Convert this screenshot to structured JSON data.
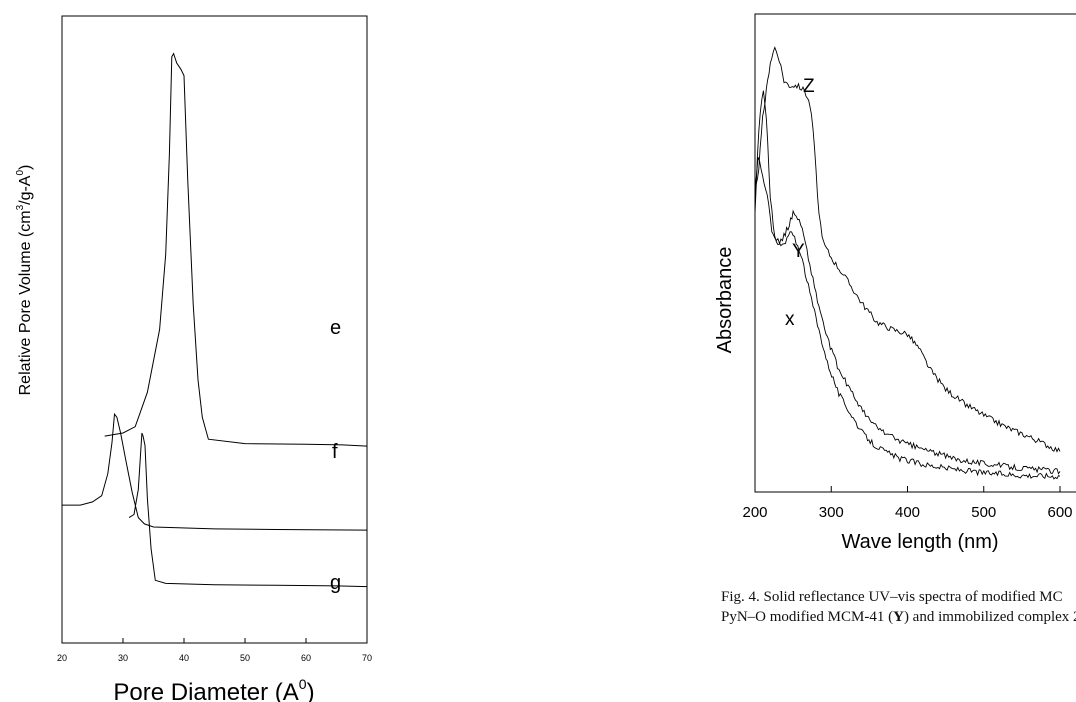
{
  "chart_data": [
    {
      "type": "line",
      "xlabel": "Pore Diameter (A",
      "xlabel_sup": "0",
      "xlabel_end": ")",
      "ylabel": "Relative Pore Volume (cm",
      "ylabel_sup1": "3",
      "ylabel_mid": "/g-A",
      "ylabel_sup2": "0",
      "ylabel_end": ")",
      "xlim": [
        20,
        70
      ],
      "x_ticks": [
        "20",
        "30",
        "40",
        "50",
        "60",
        "70"
      ],
      "y_ticks": "none",
      "grid": false,
      "series": [
        {
          "name": "e",
          "points": [
            [
              27,
              0.33
            ],
            [
              30,
              0.335
            ],
            [
              32,
              0.345
            ],
            [
              34,
              0.4
            ],
            [
              36,
              0.5
            ],
            [
              37,
              0.62
            ],
            [
              37.6,
              0.78
            ],
            [
              38,
              0.935
            ],
            [
              38.3,
              0.94
            ],
            [
              38.8,
              0.925
            ],
            [
              39.5,
              0.915
            ],
            [
              40,
              0.905
            ],
            [
              40.6,
              0.74
            ],
            [
              41.5,
              0.54
            ],
            [
              42.3,
              0.42
            ],
            [
              43,
              0.36
            ],
            [
              44,
              0.325
            ],
            [
              50,
              0.318
            ],
            [
              60,
              0.317
            ],
            [
              66,
              0.316
            ],
            [
              70,
              0.314
            ]
          ]
        },
        {
          "name": "f",
          "points": [
            [
              31,
              0.2
            ],
            [
              31.8,
              0.205
            ],
            [
              32.5,
              0.245
            ],
            [
              32.8,
              0.29
            ],
            [
              33.1,
              0.335
            ],
            [
              33.3,
              0.33
            ],
            [
              33.6,
              0.315
            ],
            [
              34,
              0.23
            ],
            [
              34.6,
              0.15
            ],
            [
              35.3,
              0.1
            ],
            [
              37,
              0.095
            ],
            [
              45,
              0.093
            ],
            [
              55,
              0.092
            ],
            [
              65,
              0.091
            ],
            [
              70,
              0.09
            ]
          ]
        },
        {
          "name": "g",
          "points": [
            [
              20,
              0.22
            ],
            [
              23,
              0.22
            ],
            [
              25,
              0.225
            ],
            [
              26.5,
              0.235
            ],
            [
              27.5,
              0.27
            ],
            [
              28.2,
              0.32
            ],
            [
              28.6,
              0.365
            ],
            [
              29,
              0.36
            ],
            [
              29.6,
              0.335
            ],
            [
              30.5,
              0.29
            ],
            [
              31.5,
              0.24
            ],
            [
              32.5,
              0.2
            ],
            [
              33.5,
              0.19
            ],
            [
              35,
              0.185
            ],
            [
              45,
              0.182
            ],
            [
              55,
              0.181
            ],
            [
              70,
              0.18
            ]
          ]
        }
      ]
    },
    {
      "type": "line",
      "xlabel": "Wave length (nm)",
      "ylabel": "Absorbance",
      "xlim": [
        200,
        600
      ],
      "x_ticks": [
        "200",
        "300",
        "400",
        "500",
        "600"
      ],
      "y_ticks": "none",
      "grid": false,
      "series": [
        {
          "name": "Z",
          "points": [
            [
              200,
              0.62
            ],
            [
              205,
              0.68
            ],
            [
              210,
              0.78
            ],
            [
              215,
              0.84
            ],
            [
              220,
              0.9
            ],
            [
              226,
              0.93
            ],
            [
              232,
              0.905
            ],
            [
              238,
              0.86
            ],
            [
              245,
              0.85
            ],
            [
              255,
              0.85
            ],
            [
              265,
              0.84
            ],
            [
              272,
              0.81
            ],
            [
              276,
              0.76
            ],
            [
              280,
              0.67
            ],
            [
              284,
              0.58
            ],
            [
              290,
              0.52
            ],
            [
              300,
              0.49
            ],
            [
              320,
              0.445
            ],
            [
              340,
              0.395
            ],
            [
              360,
              0.355
            ],
            [
              380,
              0.34
            ],
            [
              400,
              0.33
            ],
            [
              415,
              0.3
            ],
            [
              430,
              0.255
            ],
            [
              450,
              0.215
            ],
            [
              470,
              0.19
            ],
            [
              500,
              0.16
            ],
            [
              530,
              0.135
            ],
            [
              560,
              0.115
            ],
            [
              580,
              0.1
            ],
            [
              600,
              0.085
            ]
          ]
        },
        {
          "name": "Y",
          "points": [
            [
              200,
              0.58
            ],
            [
              203,
              0.7
            ],
            [
              207,
              0.8
            ],
            [
              211,
              0.84
            ],
            [
              215,
              0.78
            ],
            [
              220,
              0.62
            ],
            [
              226,
              0.53
            ],
            [
              232,
              0.52
            ],
            [
              238,
              0.535
            ],
            [
              245,
              0.56
            ],
            [
              250,
              0.585
            ],
            [
              256,
              0.575
            ],
            [
              262,
              0.55
            ],
            [
              270,
              0.49
            ],
            [
              282,
              0.4
            ],
            [
              295,
              0.32
            ],
            [
              310,
              0.255
            ],
            [
              330,
              0.2
            ],
            [
              345,
              0.16
            ],
            [
              360,
              0.135
            ],
            [
              380,
              0.115
            ],
            [
              400,
              0.1
            ],
            [
              430,
              0.085
            ],
            [
              460,
              0.07
            ],
            [
              500,
              0.06
            ],
            [
              550,
              0.05
            ],
            [
              600,
              0.043
            ]
          ]
        },
        {
          "name": "X",
          "points": [
            [
              200,
              0.63
            ],
            [
              204,
              0.7
            ],
            [
              208,
              0.68
            ],
            [
              212,
              0.64
            ],
            [
              216,
              0.62
            ],
            [
              222,
              0.55
            ],
            [
              228,
              0.53
            ],
            [
              234,
              0.515
            ],
            [
              240,
              0.52
            ],
            [
              246,
              0.545
            ],
            [
              252,
              0.53
            ],
            [
              260,
              0.5
            ],
            [
              270,
              0.43
            ],
            [
              282,
              0.35
            ],
            [
              295,
              0.27
            ],
            [
              310,
              0.205
            ],
            [
              325,
              0.165
            ],
            [
              340,
              0.125
            ],
            [
              355,
              0.1
            ],
            [
              370,
              0.085
            ],
            [
              390,
              0.07
            ],
            [
              420,
              0.058
            ],
            [
              450,
              0.05
            ],
            [
              500,
              0.04
            ],
            [
              550,
              0.035
            ],
            [
              600,
              0.033
            ]
          ]
        }
      ]
    }
  ],
  "caption": {
    "line1_prefix": "Fig. 4. Solid reflectance UV–vis spectra of modified MC",
    "line2_prefix": "PyN–O modified MCM-41 (",
    "line2_bold": "Y",
    "line2_suffix": ") and immobilized complex 2"
  }
}
